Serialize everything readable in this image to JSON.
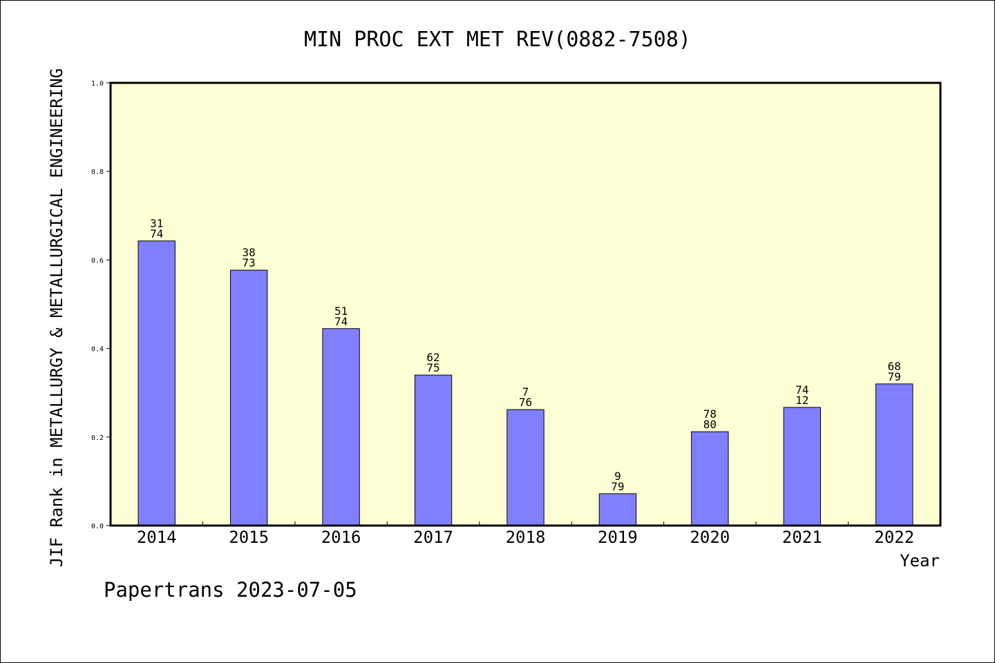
{
  "chart_data": {
    "type": "bar",
    "title": "MIN PROC EXT MET REV(0882-7508)",
    "xlabel": "Year",
    "ylabel": "JIF Rank in METALLURGY & METALLURGICAL ENGINEERING",
    "footer": "Papertrans 2023-07-05",
    "ylim": [
      0,
      1.0
    ],
    "yticks": [
      "0.0",
      "0.2",
      "0.4",
      "0.6",
      "0.8",
      "1.0"
    ],
    "categories": [
      "2014",
      "2015",
      "2016",
      "2017",
      "2018",
      "2019",
      "2020",
      "2021",
      "2022"
    ],
    "values": [
      0.643,
      0.577,
      0.445,
      0.34,
      0.262,
      0.072,
      0.212,
      0.267,
      0.32
    ],
    "labels_top": [
      "31",
      "38",
      "51",
      "62",
      "7",
      "9",
      "78",
      "74",
      "68"
    ],
    "labels_bottom": [
      "74",
      "73",
      "74",
      "75",
      "76",
      "79",
      "80",
      "12",
      "79"
    ],
    "grid": false,
    "colors": {
      "plot_background": "#ffffd5",
      "bar_fill": "#8080ff",
      "bar_stroke": "#000000"
    }
  }
}
